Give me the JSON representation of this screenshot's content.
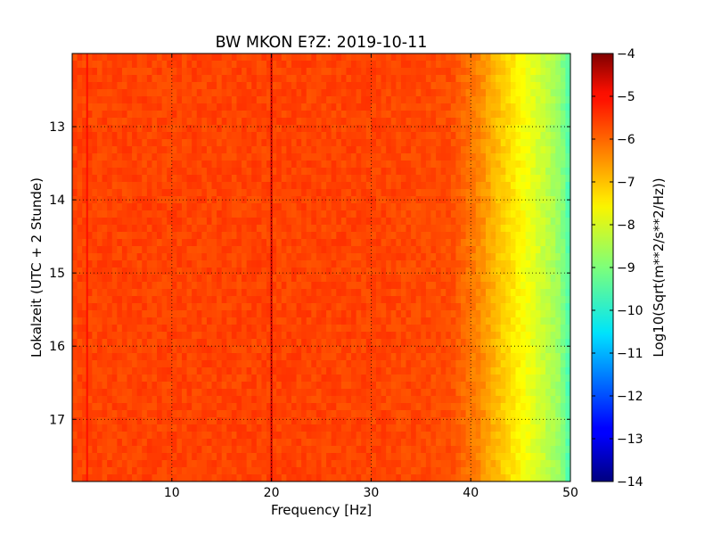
{
  "chart_data": {
    "type": "heatmap",
    "title": "BW MKON E?Z: 2019-10-11",
    "xlabel": "Frequency [Hz]",
    "ylabel": "Lokalzeit (UTC + 2 Stunde)",
    "colorbar_label": "Log10(Sqrt(m**2/s**2/Hz))",
    "x_range": [
      0,
      50
    ],
    "y_range": [
      12,
      17.85
    ],
    "y_inverted": true,
    "x_ticks": [
      10,
      20,
      30,
      40,
      50
    ],
    "y_ticks": [
      13,
      14,
      15,
      16,
      17
    ],
    "colorbar_range": [
      -14,
      -4
    ],
    "colorbar_ticks": [
      -4,
      -5,
      -6,
      -7,
      -8,
      -9,
      -10,
      -11,
      -12,
      -13,
      -14
    ],
    "colormap": "jet",
    "grid": true,
    "background_level": -5.9,
    "high_frequency_rolloff": [
      {
        "frequency": 0,
        "level": -5.9
      },
      {
        "frequency": 30,
        "level": -5.9
      },
      {
        "frequency": 38,
        "level": -6.0
      },
      {
        "frequency": 41,
        "level": -6.6
      },
      {
        "frequency": 43,
        "level": -7.2
      },
      {
        "frequency": 45,
        "level": -7.7
      },
      {
        "frequency": 47,
        "level": -8.2
      },
      {
        "frequency": 49,
        "level": -8.8
      },
      {
        "frequency": 50,
        "level": -9.6
      }
    ],
    "time_bands": [
      {
        "time": 12.05,
        "level": -5.0
      },
      {
        "time": 12.1,
        "level": -4.9
      },
      {
        "time": 12.2,
        "level": -5.3
      },
      {
        "time": 12.35,
        "level": -5.4
      },
      {
        "time": 13.3,
        "level": -5.3
      },
      {
        "time": 13.5,
        "level": -5.0
      },
      {
        "time": 13.7,
        "level": -5.3
      },
      {
        "time": 13.95,
        "level": -4.8
      },
      {
        "time": 14.1,
        "level": -5.1
      },
      {
        "time": 14.2,
        "level": -4.9
      },
      {
        "time": 14.35,
        "level": -4.8
      },
      {
        "time": 14.5,
        "level": -4.9
      },
      {
        "time": 14.65,
        "level": -5.0
      },
      {
        "time": 14.8,
        "level": -5.2
      },
      {
        "time": 14.95,
        "level": -5.4
      },
      {
        "time": 16.75,
        "level": -5.4
      }
    ],
    "frequency_lines": [
      {
        "frequency": 20,
        "level": -4.7
      },
      {
        "frequency": 1.5,
        "level": -5.4
      }
    ]
  }
}
